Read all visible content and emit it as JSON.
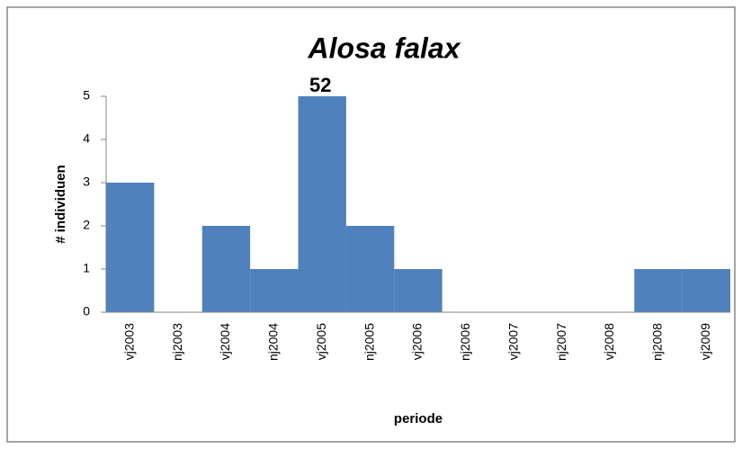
{
  "chart_data": {
    "type": "bar",
    "title": "Alosa falax",
    "annotation": "52",
    "categories": [
      "vj2003",
      "nj2003",
      "vj2004",
      "nj2004",
      "vj2005",
      "nj2005",
      "vj2006",
      "nj2006",
      "vj2007",
      "nj2007",
      "vj2008",
      "nj2008",
      "vj2009"
    ],
    "values": [
      3,
      0,
      2,
      1,
      5,
      2,
      1,
      0,
      0,
      0,
      0,
      1,
      1
    ],
    "color": "#4f81bd",
    "ylim": [
      0,
      5
    ],
    "yticks": [
      0,
      1,
      2,
      3,
      4,
      5
    ],
    "grid": false,
    "x_label": "periode",
    "y_label": "# individuen"
  }
}
